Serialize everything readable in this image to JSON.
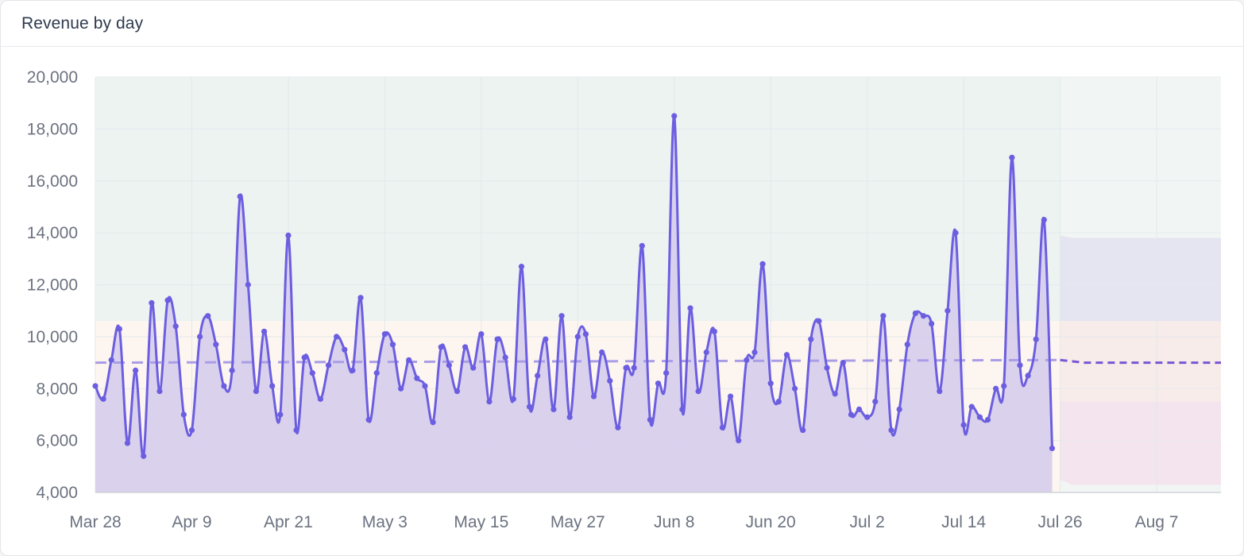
{
  "panel": {
    "title": "Revenue by day"
  },
  "colors": {
    "line": "#6b5ee0",
    "area": "#d6cdec",
    "upper_band": "#ecf3f1",
    "middle_band": "#fdf5ef",
    "forecast_upper": "#e5e4f1",
    "forecast_lower": "#f3e4ee",
    "average_line": "#a99ee6",
    "forecast_line": "#7a55d6"
  },
  "chart_data": {
    "type": "line",
    "title": "Revenue by day",
    "xlabel": "",
    "ylabel": "",
    "x_ticks": [
      "Mar 28",
      "Apr 9",
      "Apr 21",
      "May 3",
      "May 15",
      "May 27",
      "Jun 8",
      "Jun 20",
      "Jul 2",
      "Jul 14",
      "Jul 26",
      "Aug 7"
    ],
    "y_ticks": [
      "4,000",
      "6,000",
      "8,000",
      "10,000",
      "12,000",
      "14,000",
      "16,000",
      "18,000",
      "20,000"
    ],
    "ylim": [
      4000,
      20000
    ],
    "x_range_days": [
      0,
      140
    ],
    "grid": true,
    "legend": "none",
    "series": [
      {
        "kind": "actual",
        "start": "Mar 28",
        "values": [
          8100,
          7600,
          9100,
          10300,
          5900,
          8700,
          5400,
          11300,
          7900,
          11400,
          10400,
          7000,
          6400,
          10000,
          10800,
          9700,
          8100,
          8700,
          15400,
          12000,
          7900,
          10200,
          8100,
          7000,
          13900,
          6400,
          9200,
          8600,
          7600,
          8900,
          10000,
          9500,
          8700,
          11500,
          6800,
          8600,
          10100,
          9700,
          8000,
          9100,
          8400,
          8100,
          6700,
          9600,
          8900,
          7900,
          9600,
          8800,
          10100,
          7500,
          9900,
          9200,
          7600,
          12700,
          7300,
          8500,
          9900,
          7200,
          10800,
          6900,
          10000,
          10100,
          7700,
          9400,
          8300,
          6500,
          8800,
          8800,
          13500,
          6800,
          8200,
          8600,
          18500,
          7200,
          11100,
          7900,
          9400,
          10200,
          6500,
          7700,
          6000,
          9100,
          9400,
          12800,
          8200,
          7500,
          9300,
          8000,
          6400,
          9900,
          10600,
          8800,
          7800,
          9000,
          7000,
          7200,
          6900,
          7500,
          10800,
          6400,
          7200,
          9700,
          10900,
          10800,
          10500,
          7900,
          11000,
          14000,
          6600,
          7300,
          6900,
          6800,
          8000,
          8100,
          16900,
          8900,
          8500,
          9900,
          14500,
          5700
        ]
      },
      {
        "kind": "average",
        "values": [
          9000,
          9100
        ]
      },
      {
        "kind": "forecast",
        "values": [
          9100,
          9000,
          9000
        ]
      }
    ],
    "bands": {
      "historical_upper": 10600,
      "forecast_upper": [
        13900,
        13800
      ],
      "forecast_lower": [
        4500,
        4300
      ],
      "forecast_mid": [
        10600,
        7500
      ]
    }
  }
}
